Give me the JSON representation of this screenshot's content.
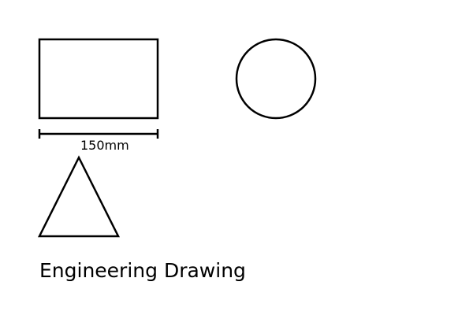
{
  "drawing": {
    "dimension_label": "150mm",
    "title": "Engineering Drawing"
  },
  "shapes": [
    "rectangle",
    "circle",
    "triangle"
  ],
  "colors": {
    "background": "#ffffff",
    "stroke": "#000000"
  }
}
